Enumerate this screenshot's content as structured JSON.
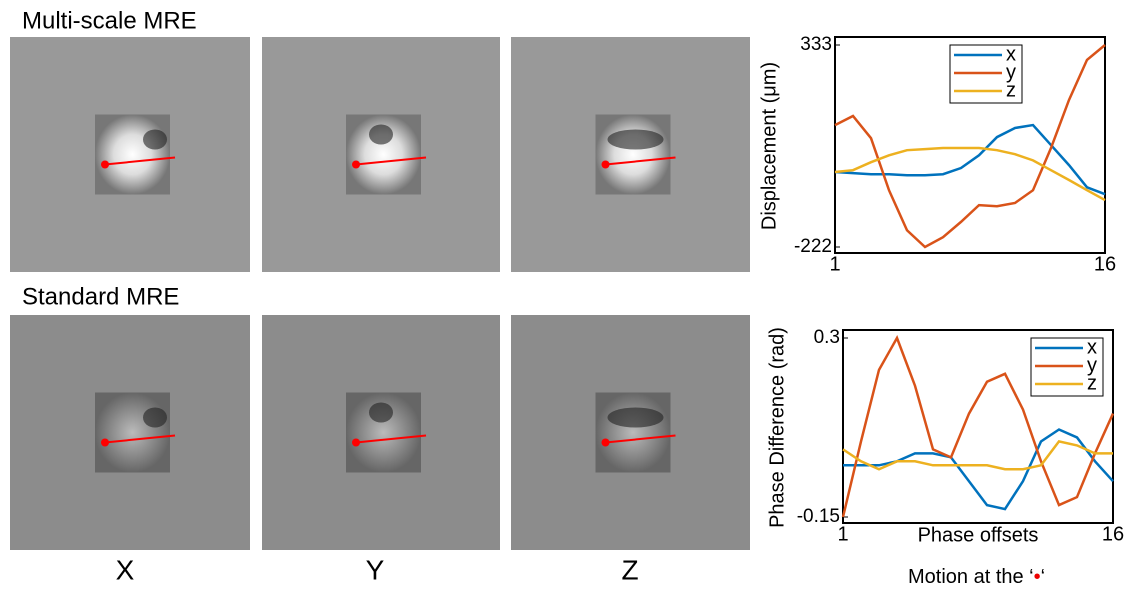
{
  "header": {
    "row1_title": "Multi-scale MRE",
    "row2_title": "Standard MRE",
    "col_labels": [
      "X",
      "Y",
      "Z"
    ],
    "caption_before": "Motion at the ‘",
    "caption_marker": "•",
    "caption_after": "‘"
  },
  "chart_data": [
    {
      "type": "line",
      "ylabel": "Displacement (μm)",
      "x": [
        1,
        2,
        3,
        4,
        5,
        6,
        7,
        8,
        9,
        10,
        11,
        12,
        13,
        14,
        15,
        16
      ],
      "xlim": [
        1,
        16
      ],
      "xticks": [
        1,
        16
      ],
      "ylim": [
        -222,
        333
      ],
      "yticks": [
        -222,
        333
      ],
      "legend": "top-right",
      "series": [
        {
          "name": "x",
          "color": "#0072bd",
          "values": [
            -16,
            -19,
            -22,
            -22,
            -25,
            -25,
            -22,
            -5,
            30,
            80,
            105,
            113,
            58,
            3,
            -58,
            -77
          ]
        },
        {
          "name": "y",
          "color": "#d95319",
          "values": [
            113,
            138,
            77,
            -66,
            -176,
            -222,
            -195,
            -153,
            -107,
            -110,
            -101,
            -66,
            50,
            182,
            292,
            333
          ]
        },
        {
          "name": "z",
          "color": "#edb120",
          "values": [
            -16,
            -11,
            11,
            30,
            44,
            47,
            50,
            50,
            50,
            44,
            33,
            16,
            -11,
            -38,
            -66,
            -93
          ]
        }
      ]
    },
    {
      "type": "line",
      "ylabel": "Phase Difference (rad)",
      "xlabel": "Phase offsets",
      "x": [
        1,
        2,
        3,
        4,
        5,
        6,
        7,
        8,
        9,
        10,
        11,
        12,
        13,
        14,
        15,
        16
      ],
      "xlim": [
        1,
        16
      ],
      "xticks": [
        1,
        16
      ],
      "ylim": [
        -0.15,
        0.3
      ],
      "yticks": [
        -0.15,
        0.3
      ],
      "legend": "top-right",
      "series": [
        {
          "name": "x",
          "color": "#0072bd",
          "values": [
            -0.02,
            -0.02,
            -0.02,
            -0.01,
            0.01,
            0.01,
            0,
            -0.06,
            -0.12,
            -0.13,
            -0.06,
            0.04,
            0.07,
            0.05,
            -0.01,
            -0.06
          ]
        },
        {
          "name": "y",
          "color": "#d95319",
          "values": [
            -0.15,
            0.04,
            0.22,
            0.3,
            0.18,
            0.02,
            0,
            0.11,
            0.19,
            0.21,
            0.12,
            -0.01,
            -0.12,
            -0.1,
            0.01,
            0.11
          ]
        },
        {
          "name": "z",
          "color": "#edb120",
          "values": [
            0.02,
            -0.01,
            -0.03,
            -0.01,
            -0.01,
            -0.02,
            -0.02,
            -0.02,
            -0.02,
            -0.03,
            -0.03,
            -0.02,
            0.04,
            0.03,
            0.01,
            0.01
          ]
        }
      ]
    }
  ]
}
